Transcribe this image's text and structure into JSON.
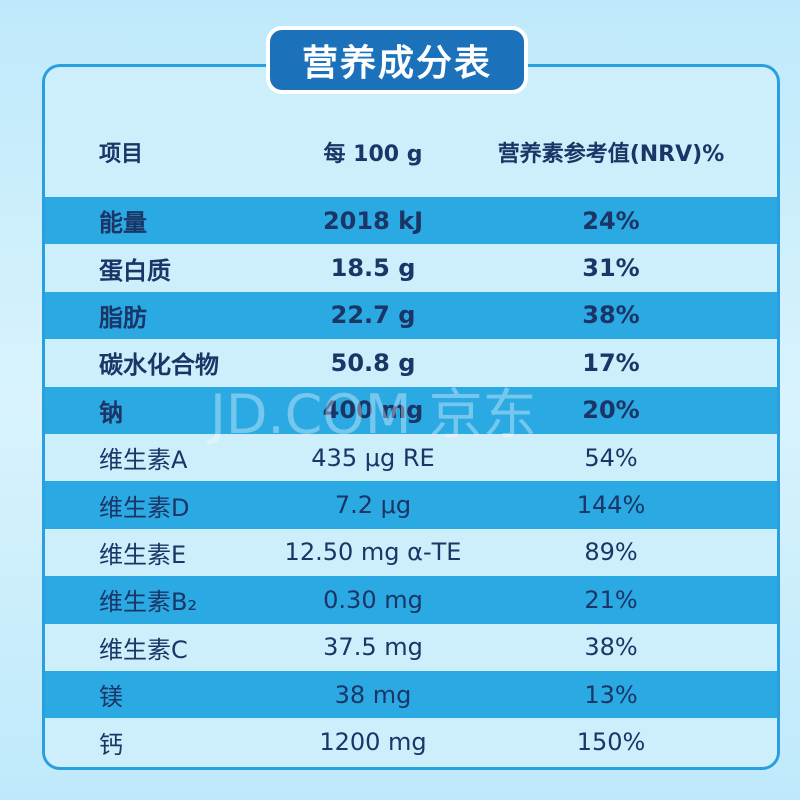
{
  "title": "营养成分表",
  "watermark": "JD.COM 京东",
  "table": {
    "header": [
      "项目",
      "每 100 g",
      "营养素参考值(NRV)%"
    ],
    "rows": [
      [
        "能量",
        "2018 kJ",
        "24%"
      ],
      [
        "蛋白质",
        "18.5 g",
        "31%"
      ],
      [
        "脂肪",
        "22.7 g",
        "38%"
      ],
      [
        "碳水化合物",
        "50.8 g",
        "17%"
      ],
      [
        "钠",
        "400 mg",
        "20%"
      ],
      [
        "维生素A",
        "435 μg RE",
        "54%"
      ],
      [
        "维生素D",
        "7.2 μg",
        "144%"
      ],
      [
        "维生素E",
        "12.50 mg α-TE",
        "89%"
      ],
      [
        "维生素B₂",
        "0.30 mg",
        "21%"
      ],
      [
        "维生素C",
        "37.5 mg",
        "38%"
      ],
      [
        "镁",
        "38 mg",
        "13%"
      ],
      [
        "钙",
        "1200 mg",
        "150%"
      ]
    ]
  }
}
